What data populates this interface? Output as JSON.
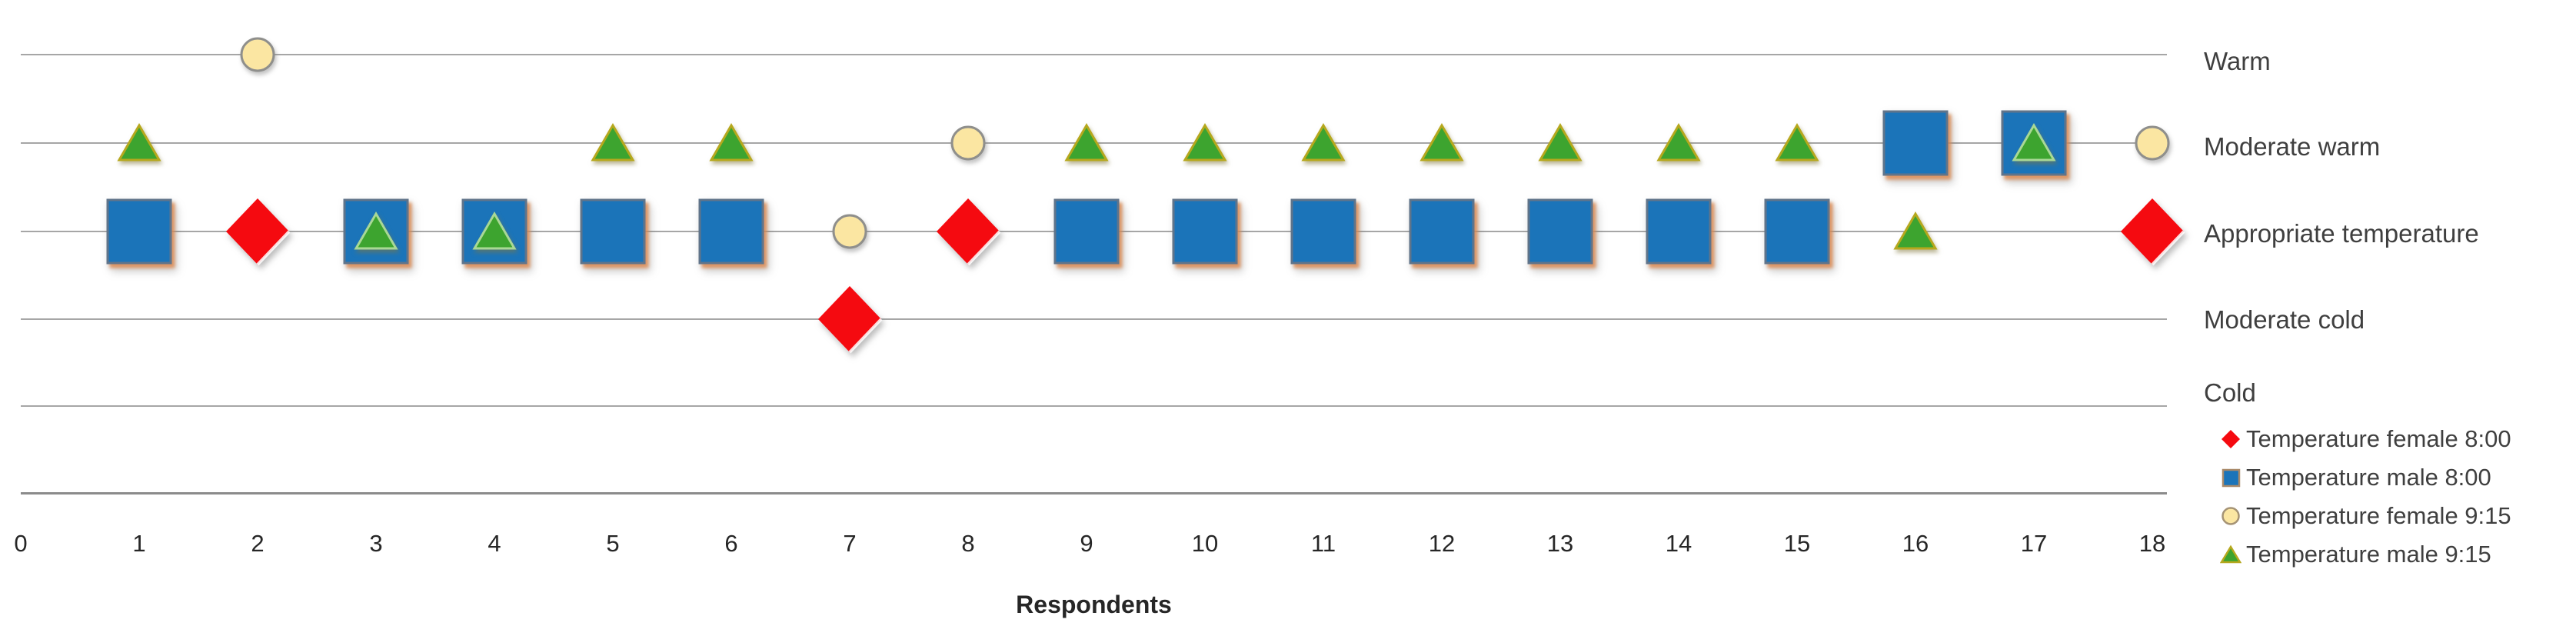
{
  "chart_data": {
    "type": "scatter",
    "title": "",
    "xlabel": "Respondents",
    "x_ticks": [
      "0",
      "1",
      "2",
      "3",
      "4",
      "5",
      "6",
      "7",
      "8",
      "9",
      "10",
      "11",
      "12",
      "13",
      "14",
      "15",
      "16",
      "17",
      "18"
    ],
    "x_range": [
      0,
      18
    ],
    "grid": true,
    "legend_position": "right",
    "value_scale_note": "categorical y-scale, 1=Cold .. 5=Warm",
    "value_labels": [
      {
        "value": 5,
        "label": "Warm"
      },
      {
        "value": 4,
        "label": "Moderate warm"
      },
      {
        "value": 3,
        "label": "Appropriate temperature"
      },
      {
        "value": 2,
        "label": "Moderate cold"
      },
      {
        "value": 1,
        "label": "Cold"
      }
    ],
    "series": [
      {
        "name": "Temperature female 8:00",
        "marker": "diamond",
        "color": "#f50a10",
        "points": [
          [
            2,
            3
          ],
          [
            7,
            2
          ],
          [
            8,
            3
          ],
          [
            18,
            3
          ]
        ]
      },
      {
        "name": "Temperature male 8:00",
        "marker": "square",
        "color": "#1b74b9",
        "points": [
          [
            1,
            3
          ],
          [
            3,
            3
          ],
          [
            4,
            3
          ],
          [
            5,
            3
          ],
          [
            6,
            3
          ],
          [
            9,
            3
          ],
          [
            10,
            3
          ],
          [
            11,
            3
          ],
          [
            12,
            3
          ],
          [
            13,
            3
          ],
          [
            14,
            3
          ],
          [
            15,
            3
          ],
          [
            16,
            4
          ],
          [
            17,
            4
          ]
        ]
      },
      {
        "name": "Temperature female 9:15",
        "marker": "circle",
        "color": "#fbe6a2",
        "points": [
          [
            2,
            5
          ],
          [
            7,
            3
          ],
          [
            8,
            4
          ],
          [
            18,
            4
          ]
        ]
      },
      {
        "name": "Temperature male 9:15",
        "marker": "triangle",
        "color": "#3da42f",
        "points": [
          [
            1,
            4
          ],
          [
            3,
            3
          ],
          [
            4,
            3
          ],
          [
            5,
            4
          ],
          [
            6,
            4
          ],
          [
            9,
            4
          ],
          [
            10,
            4
          ],
          [
            11,
            4
          ],
          [
            12,
            4
          ],
          [
            13,
            4
          ],
          [
            14,
            4
          ],
          [
            15,
            4
          ],
          [
            16,
            3
          ],
          [
            17,
            4
          ]
        ]
      }
    ]
  }
}
